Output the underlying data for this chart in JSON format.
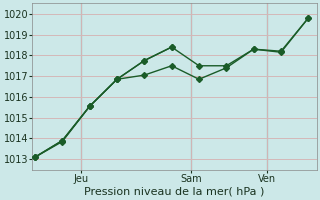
{
  "bg_color": "#cce8e8",
  "line_color": "#1a5c28",
  "grid_color": "#d4b8b8",
  "xlabel": "Pression niveau de la mer( hPa )",
  "xlabel_fontsize": 8,
  "tick_fontsize": 7,
  "ylim": [
    1012.5,
    1020.5
  ],
  "yticks": [
    1013,
    1014,
    1015,
    1016,
    1017,
    1018,
    1019,
    1020
  ],
  "xlim": [
    -0.1,
    10.3
  ],
  "line1_x": [
    0,
    1,
    2,
    3,
    4,
    5,
    6,
    7,
    8,
    9,
    10
  ],
  "line1_y": [
    1013.1,
    1013.9,
    1015.55,
    1016.85,
    1017.75,
    1018.4,
    1017.5,
    1017.5,
    1018.3,
    1018.2,
    1019.8
  ],
  "line2_x": [
    0,
    1,
    2,
    3,
    4,
    5
  ],
  "line2_y": [
    1013.1,
    1013.85,
    1015.55,
    1016.85,
    1017.75,
    1018.4
  ],
  "line3_x": [
    0,
    1,
    2,
    3,
    4,
    5,
    6,
    7,
    8,
    9,
    10
  ],
  "line3_y": [
    1013.1,
    1013.9,
    1015.55,
    1016.85,
    1017.05,
    1017.5,
    1016.85,
    1017.4,
    1018.3,
    1018.15,
    1019.8
  ],
  "vline_x": [
    1.7,
    5.7,
    8.5
  ],
  "xtick_positions": [
    1.7,
    5.7,
    8.5
  ],
  "xtick_labels": [
    "Jeu",
    "Sam",
    "Ven"
  ],
  "marker": "D",
  "markersize": 3,
  "linewidth": 1.0
}
